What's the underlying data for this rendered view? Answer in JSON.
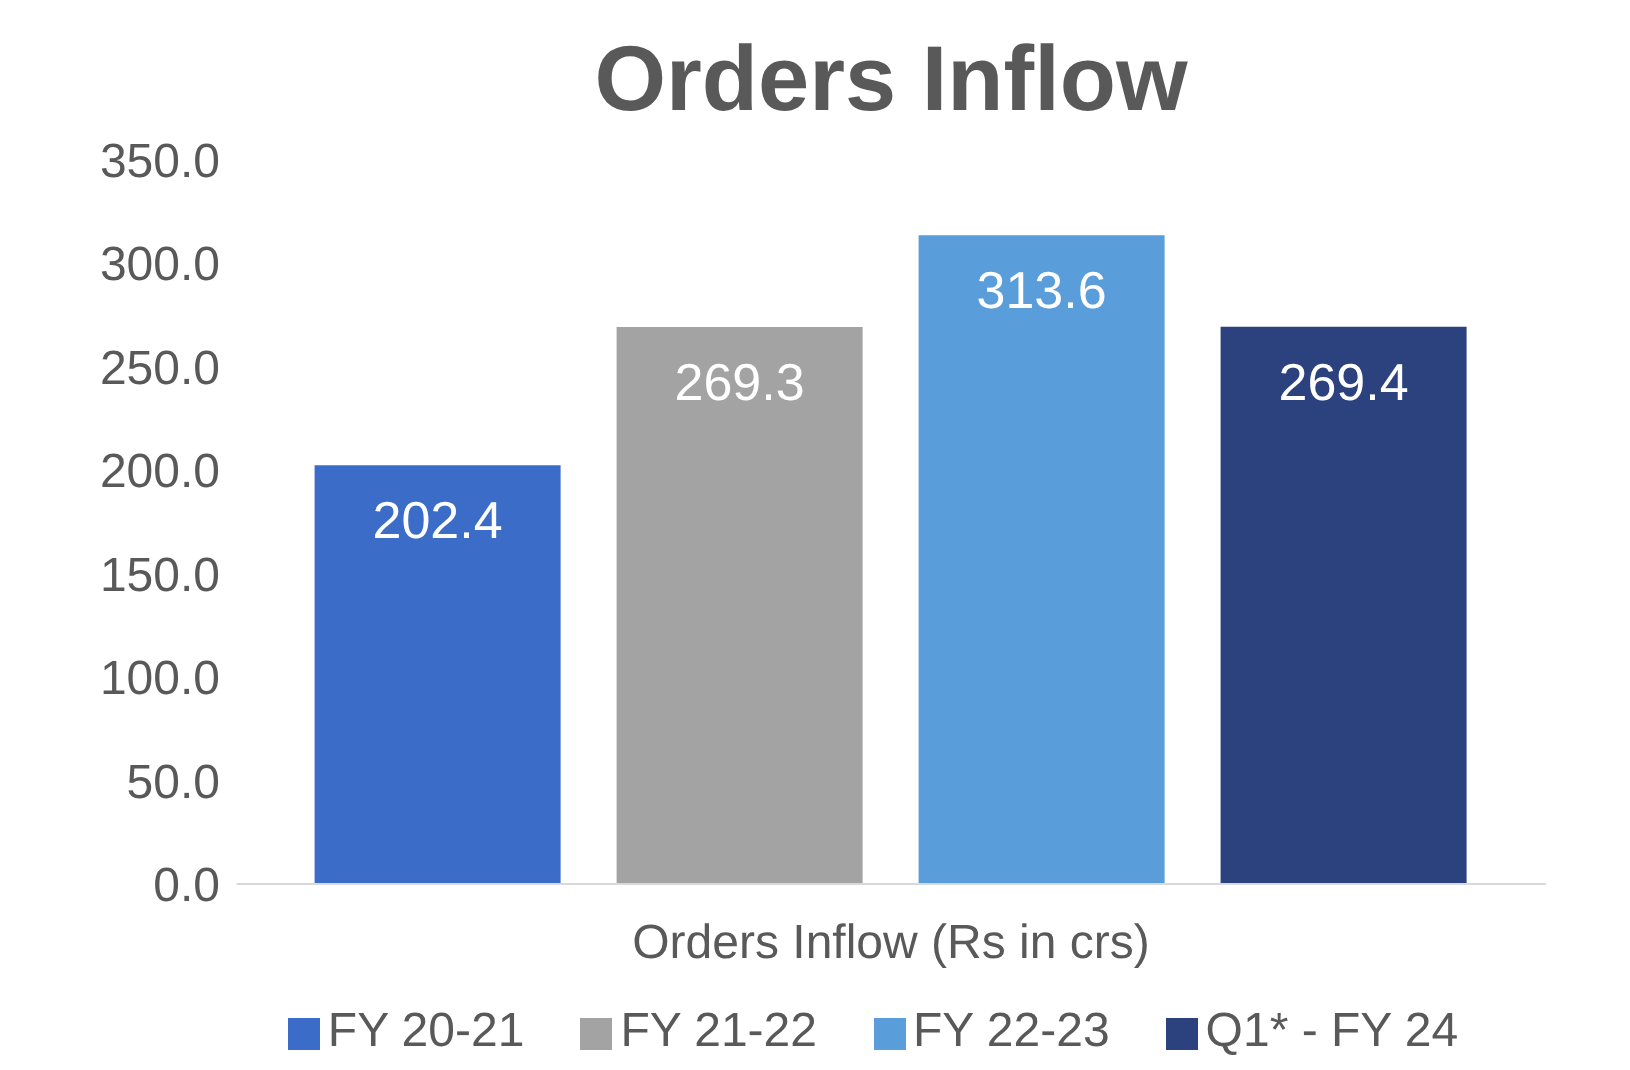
{
  "chart_data": {
    "type": "bar",
    "title": "Orders Inflow",
    "categories": [
      "Orders Inflow (Rs in crs)"
    ],
    "series": [
      {
        "name": "FY 20-21",
        "color": "#3a6cc8",
        "values": [
          202.4
        ]
      },
      {
        "name": "FY 21-22",
        "color": "#a3a3a3",
        "values": [
          269.3
        ]
      },
      {
        "name": "FY 22-23",
        "color": "#5a9ddb",
        "values": [
          313.6
        ]
      },
      {
        "name": "Q1* - FY 24",
        "color": "#2b427e",
        "values": [
          269.4
        ]
      }
    ],
    "ylim": [
      0,
      350
    ],
    "yticks": [
      {
        "value": 0,
        "label": "0.0"
      },
      {
        "value": 50,
        "label": "50.0"
      },
      {
        "value": 100,
        "label": "100.0"
      },
      {
        "value": 150,
        "label": "150.0"
      },
      {
        "value": 200,
        "label": "200.0"
      },
      {
        "value": 250,
        "label": "250.0"
      },
      {
        "value": 300,
        "label": "300.0"
      },
      {
        "value": 350,
        "label": "350.0"
      }
    ],
    "grid": false,
    "legend": "bottom",
    "data_labels": true
  }
}
